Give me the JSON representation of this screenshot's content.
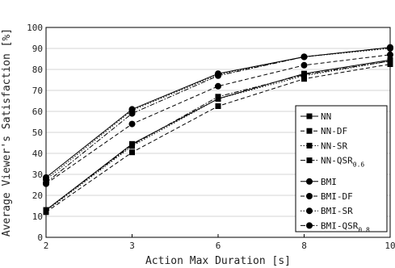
{
  "chart_data": {
    "type": "line",
    "x": [
      2,
      3,
      6,
      8,
      10
    ],
    "xlabel": "Action Max Duration [s]",
    "ylabel": "Average Viewer's Satisfaction [%]",
    "ylim": [
      0,
      100
    ],
    "yticks": [
      0,
      10,
      20,
      30,
      40,
      50,
      60,
      70,
      80,
      90,
      100
    ],
    "grid": "horizontal",
    "legend_position": "bottom-right",
    "series": [
      {
        "name": "NN",
        "sub": "",
        "marker": "square",
        "line": "solid",
        "values": [
          13,
          44.5,
          66,
          78,
          84.5
        ]
      },
      {
        "name": "NN-DF",
        "sub": "",
        "marker": "square",
        "line": "dashed",
        "values": [
          12,
          40.5,
          62.5,
          75.5,
          82.5
        ]
      },
      {
        "name": "NN-SR",
        "sub": "",
        "marker": "square",
        "line": "dotted",
        "values": [
          12.5,
          43.5,
          66,
          77,
          84
        ]
      },
      {
        "name": "NN-QSR",
        "sub": "0.6",
        "marker": "square",
        "line": "dashdot",
        "values": [
          13,
          44,
          67,
          77.5,
          84
        ]
      },
      {
        "name": "BMI",
        "sub": "",
        "marker": "circle",
        "line": "solid",
        "values": [
          28.5,
          61,
          78,
          86,
          90.5
        ]
      },
      {
        "name": "BMI-DF",
        "sub": "",
        "marker": "circle",
        "line": "dashed",
        "values": [
          25.5,
          54,
          72,
          82,
          87
        ]
      },
      {
        "name": "BMI-SR",
        "sub": "",
        "marker": "circle",
        "line": "dotted",
        "values": [
          27.5,
          60.5,
          77.5,
          86,
          90
        ]
      },
      {
        "name": "BMI-QSR",
        "sub": "0.8",
        "marker": "circle",
        "line": "dashdot",
        "values": [
          26,
          59,
          77,
          86,
          90.5
        ]
      }
    ]
  }
}
